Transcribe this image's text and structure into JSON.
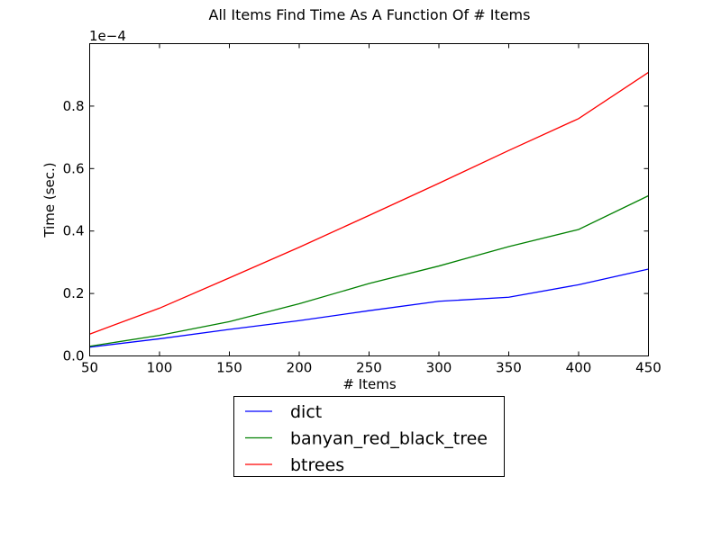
{
  "chart_data": {
    "type": "line",
    "title": "All Items Find Time As A Function Of # Items",
    "xlabel": "# Items",
    "ylabel": "Time (sec.)",
    "y_scale_label": "1e−4",
    "xlim": [
      50,
      450
    ],
    "ylim": [
      0,
      1.0
    ],
    "x_ticks": [
      50,
      100,
      150,
      200,
      250,
      300,
      350,
      400,
      450
    ],
    "x_tick_labels": [
      "50",
      "100",
      "150",
      "200",
      "250",
      "300",
      "350",
      "400",
      "450"
    ],
    "y_ticks": [
      0,
      0.2,
      0.4,
      0.6,
      0.8
    ],
    "y_tick_labels": [
      "0.0",
      "0.2",
      "0.4",
      "0.6",
      "0.8"
    ],
    "grid": false,
    "legend_position": "below-center",
    "x": [
      50,
      100,
      150,
      200,
      250,
      300,
      350,
      400,
      450
    ],
    "series": [
      {
        "name": "dict",
        "color": "#0000ff",
        "values": [
          0.028,
          0.055,
          0.085,
          0.113,
          0.145,
          0.175,
          0.188,
          0.228,
          0.278
        ]
      },
      {
        "name": "banyan_red_black_tree",
        "color": "#008000",
        "values": [
          0.031,
          0.066,
          0.11,
          0.167,
          0.232,
          0.288,
          0.35,
          0.405,
          0.513
        ]
      },
      {
        "name": "btrees",
        "color": "#ff0000",
        "values": [
          0.07,
          0.153,
          0.25,
          0.348,
          0.45,
          0.553,
          0.658,
          0.76,
          0.908
        ]
      }
    ]
  }
}
